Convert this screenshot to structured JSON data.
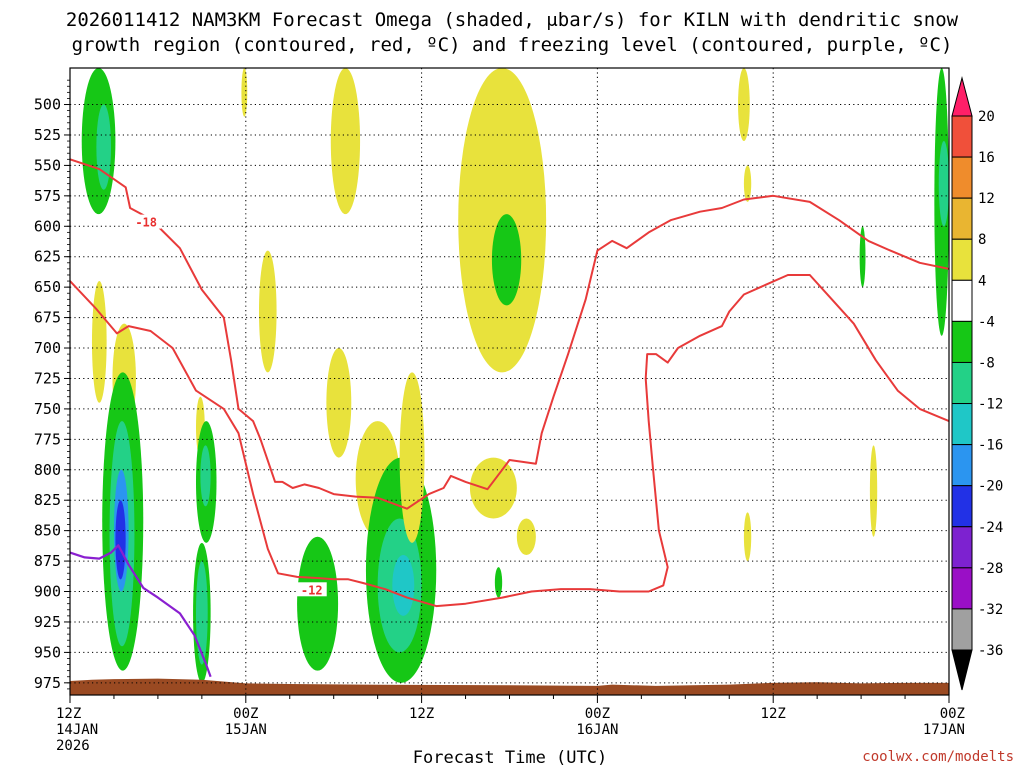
{
  "chart_data": {
    "type": "heatmap",
    "title_lines": [
      "2026011412 NAM3KM Forecast Omega (shaded, μbar/s) for KILN with dendritic snow",
      "growth region (contoured, red, ºC) and freezing level (contoured, purple, ºC)"
    ],
    "xlabel": "Forecast Time (UTC)",
    "credit": "coolwx.com/modelts",
    "x_range_hours": [
      0,
      60
    ],
    "x_ticks": [
      {
        "hour": 0,
        "label": "12Z",
        "sub": "14JAN",
        "sub2": "2026"
      },
      {
        "hour": 12,
        "label": "00Z",
        "sub": "15JAN",
        "sub2": ""
      },
      {
        "hour": 24,
        "label": "12Z",
        "sub": "",
        "sub2": ""
      },
      {
        "hour": 36,
        "label": "00Z",
        "sub": "16JAN",
        "sub2": ""
      },
      {
        "hour": 48,
        "label": "12Z",
        "sub": "",
        "sub2": ""
      },
      {
        "hour": 60,
        "label": "00Z",
        "sub": "17JAN",
        "sub2": ""
      }
    ],
    "y_range_mb": [
      470,
      985
    ],
    "y_ticks": [
      500,
      525,
      550,
      575,
      600,
      625,
      650,
      675,
      700,
      725,
      750,
      775,
      800,
      825,
      850,
      875,
      900,
      925,
      950,
      975
    ],
    "grid": true,
    "colorbar": {
      "levels": [
        20,
        16,
        12,
        8,
        4,
        -4,
        -8,
        -12,
        -16,
        -20,
        -24,
        -28,
        -32,
        -36
      ],
      "colors": [
        "#ff1f68",
        "#f0503a",
        "#ef8c2c",
        "#e9b531",
        "#e8e23c",
        "#ffffff",
        "#16c716",
        "#23d187",
        "#1fc7c7",
        "#2b95f0",
        "#2231e6",
        "#7d22d0",
        "#9a0fc6",
        "#a0a0a0",
        "#000000"
      ]
    },
    "omega_regions": [
      {
        "value": -6,
        "t": [
          0.8,
          3.1
        ],
        "p": [
          470,
          590
        ]
      },
      {
        "value": -10,
        "t": [
          1.8,
          2.8
        ],
        "p": [
          500,
          570
        ]
      },
      {
        "value": 5,
        "t": [
          1.5,
          2.5
        ],
        "p": [
          645,
          745
        ]
      },
      {
        "value": 6,
        "t": [
          2.9,
          4.5
        ],
        "p": [
          680,
          770
        ]
      },
      {
        "value": -6,
        "t": [
          2.2,
          5.0
        ],
        "p": [
          720,
          965
        ]
      },
      {
        "value": -12,
        "t": [
          2.7,
          4.4
        ],
        "p": [
          760,
          945
        ]
      },
      {
        "value": -17,
        "t": [
          3.0,
          4.0
        ],
        "p": [
          800,
          900
        ]
      },
      {
        "value": -22,
        "t": [
          3.1,
          3.8
        ],
        "p": [
          825,
          890
        ]
      },
      {
        "value": 5,
        "t": [
          8.6,
          9.2
        ],
        "p": [
          740,
          790
        ]
      },
      {
        "value": -6,
        "t": [
          8.6,
          10.0
        ],
        "p": [
          760,
          860
        ]
      },
      {
        "value": -12,
        "t": [
          8.9,
          9.6
        ],
        "p": [
          780,
          830
        ]
      },
      {
        "value": -6,
        "t": [
          8.4,
          9.6
        ],
        "p": [
          860,
          975
        ]
      },
      {
        "value": -12,
        "t": [
          8.6,
          9.4
        ],
        "p": [
          875,
          960
        ]
      },
      {
        "value": 5,
        "t": [
          11.7,
          12.1
        ],
        "p": [
          470,
          510
        ]
      },
      {
        "value": 5,
        "t": [
          12.9,
          14.1
        ],
        "p": [
          620,
          720
        ]
      },
      {
        "value": 5,
        "t": [
          17.8,
          19.8
        ],
        "p": [
          470,
          590
        ]
      },
      {
        "value": 5,
        "t": [
          17.5,
          19.2
        ],
        "p": [
          700,
          790
        ]
      },
      {
        "value": 5,
        "t": [
          19.5,
          22.5
        ],
        "p": [
          760,
          855
        ]
      },
      {
        "value": -6,
        "t": [
          15.5,
          18.3
        ],
        "p": [
          855,
          965
        ]
      },
      {
        "value": -6,
        "t": [
          20.2,
          25.0
        ],
        "p": [
          790,
          975
        ]
      },
      {
        "value": -12,
        "t": [
          21.0,
          24.0
        ],
        "p": [
          840,
          950
        ]
      },
      {
        "value": -16,
        "t": [
          22.0,
          23.5
        ],
        "p": [
          870,
          920
        ]
      },
      {
        "value": 5,
        "t": [
          22.5,
          24.2
        ],
        "p": [
          720,
          860
        ]
      },
      {
        "value": 5,
        "t": [
          26.5,
          32.5
        ],
        "p": [
          470,
          720
        ]
      },
      {
        "value": -6,
        "t": [
          28.8,
          30.8
        ],
        "p": [
          590,
          665
        ]
      },
      {
        "value": 5,
        "t": [
          27.3,
          30.5
        ],
        "p": [
          790,
          840
        ]
      },
      {
        "value": 5,
        "t": [
          30.5,
          31.8
        ],
        "p": [
          840,
          870
        ]
      },
      {
        "value": -6,
        "t": [
          29.0,
          29.5
        ],
        "p": [
          880,
          905
        ]
      },
      {
        "value": 5,
        "t": [
          45.6,
          46.4
        ],
        "p": [
          470,
          530
        ]
      },
      {
        "value": 5,
        "t": [
          46.0,
          46.5
        ],
        "p": [
          550,
          580
        ]
      },
      {
        "value": 5,
        "t": [
          46.0,
          46.5
        ],
        "p": [
          835,
          875
        ]
      },
      {
        "value": -6,
        "t": [
          53.9,
          54.3
        ],
        "p": [
          600,
          650
        ]
      },
      {
        "value": 5,
        "t": [
          54.6,
          55.1
        ],
        "p": [
          780,
          855
        ]
      },
      {
        "value": -6,
        "t": [
          59.0,
          60.0
        ],
        "p": [
          470,
          690
        ]
      },
      {
        "value": -12,
        "t": [
          59.3,
          60.0
        ],
        "p": [
          530,
          600
        ]
      }
    ],
    "dgz_contours": [
      {
        "label": "-18",
        "label_at": [
          5.2,
          597
        ],
        "points": [
          [
            0,
            545
          ],
          [
            2.0,
            553
          ],
          [
            3.8,
            568
          ],
          [
            4.1,
            585
          ],
          [
            5.5,
            594
          ],
          [
            7.5,
            618
          ],
          [
            9.0,
            652
          ],
          [
            10.5,
            675
          ],
          [
            11.0,
            710
          ],
          [
            11.5,
            750
          ],
          [
            12.5,
            760
          ],
          [
            13.0,
            775
          ],
          [
            14.0,
            810
          ],
          [
            14.5,
            810
          ],
          [
            15.2,
            815
          ],
          [
            16.0,
            812
          ],
          [
            17.0,
            815
          ],
          [
            18.0,
            820
          ],
          [
            19.5,
            822
          ],
          [
            21.0,
            823
          ],
          [
            23.0,
            832
          ],
          [
            24.5,
            820
          ],
          [
            25.5,
            815
          ],
          [
            26.0,
            805
          ],
          [
            27.0,
            810
          ],
          [
            28.5,
            816
          ],
          [
            29.5,
            800
          ],
          [
            30.0,
            792
          ],
          [
            31.8,
            795
          ],
          [
            32.2,
            770
          ],
          [
            33.0,
            740
          ],
          [
            34.0,
            705
          ],
          [
            35.2,
            660
          ],
          [
            35.6,
            640
          ],
          [
            36.0,
            620
          ],
          [
            37.0,
            612
          ],
          [
            38.0,
            618
          ],
          [
            39.5,
            605
          ],
          [
            41.0,
            595
          ],
          [
            43.0,
            588
          ],
          [
            44.5,
            585
          ],
          [
            46.0,
            578
          ],
          [
            48.0,
            575
          ],
          [
            50.5,
            580
          ],
          [
            52.5,
            595
          ],
          [
            54.5,
            612
          ],
          [
            56.0,
            620
          ],
          [
            58.0,
            630
          ],
          [
            60.0,
            635
          ]
        ]
      },
      {
        "label": "-12",
        "label_at": [
          16.5,
          899
        ],
        "points": [
          [
            0,
            645
          ],
          [
            1.8,
            668
          ],
          [
            3.2,
            688
          ],
          [
            4.0,
            682
          ],
          [
            5.5,
            686
          ],
          [
            7.0,
            700
          ],
          [
            8.6,
            735
          ],
          [
            10.5,
            750
          ],
          [
            11.5,
            770
          ],
          [
            12.5,
            820
          ],
          [
            13.5,
            865
          ],
          [
            14.2,
            885
          ],
          [
            15.5,
            888
          ],
          [
            17.0,
            889
          ],
          [
            18.0,
            890
          ],
          [
            19.0,
            890
          ],
          [
            20.0,
            893
          ],
          [
            21.5,
            898
          ],
          [
            23.0,
            905
          ],
          [
            25.0,
            912
          ],
          [
            27.0,
            910
          ],
          [
            29.5,
            905
          ],
          [
            31.5,
            900
          ],
          [
            33.5,
            898
          ],
          [
            35.5,
            898
          ],
          [
            37.5,
            900
          ],
          [
            39.5,
            900
          ],
          [
            40.5,
            895
          ],
          [
            40.8,
            880
          ],
          [
            40.5,
            865
          ],
          [
            40.2,
            850
          ],
          [
            39.8,
            800
          ],
          [
            39.5,
            760
          ],
          [
            39.3,
            725
          ],
          [
            39.4,
            705
          ],
          [
            40.0,
            705
          ],
          [
            40.8,
            712
          ],
          [
            41.5,
            700
          ],
          [
            43.0,
            690
          ],
          [
            44.5,
            682
          ],
          [
            45.0,
            670
          ],
          [
            46.0,
            656
          ],
          [
            47.5,
            648
          ],
          [
            49.0,
            640
          ],
          [
            50.5,
            640
          ],
          [
            52.0,
            660
          ],
          [
            53.5,
            680
          ],
          [
            55.0,
            710
          ],
          [
            56.5,
            735
          ],
          [
            58.0,
            750
          ],
          [
            60.0,
            760
          ]
        ]
      }
    ],
    "freezing_level": {
      "points": [
        [
          0,
          868
        ],
        [
          1.0,
          872
        ],
        [
          2.0,
          873
        ],
        [
          2.8,
          868
        ],
        [
          3.3,
          862
        ],
        [
          4.0,
          878
        ],
        [
          5.0,
          897
        ],
        [
          6.0,
          905
        ],
        [
          7.5,
          918
        ],
        [
          8.5,
          936
        ],
        [
          9.3,
          960
        ],
        [
          9.6,
          970
        ]
      ]
    },
    "terrain": {
      "top_mb": 975,
      "color": "#9a4a22",
      "points": [
        [
          0,
          973.5
        ],
        [
          1.5,
          972.5
        ],
        [
          3,
          972
        ],
        [
          6,
          971.5
        ],
        [
          9,
          972.5
        ],
        [
          12,
          975.5
        ],
        [
          15,
          976
        ],
        [
          20,
          976.5
        ],
        [
          30,
          977
        ],
        [
          36,
          977.5
        ],
        [
          37,
          976.5
        ],
        [
          40,
          977.5
        ],
        [
          45,
          976.5
        ],
        [
          48,
          975
        ],
        [
          51,
          974.5
        ],
        [
          54,
          975.5
        ],
        [
          57,
          975
        ],
        [
          60,
          975
        ]
      ]
    }
  }
}
